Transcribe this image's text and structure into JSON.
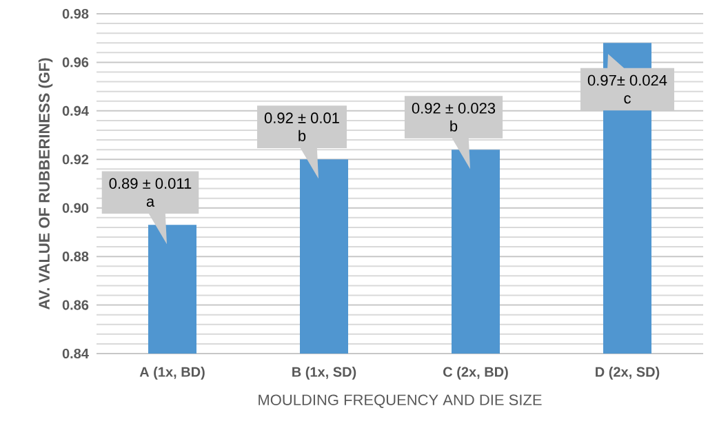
{
  "chart_data": {
    "type": "bar",
    "xlabel": "MOULDING FREQUENCY AND DIE SIZE",
    "ylabel": "AV. VALUE OF RUBBERINESS (GF)",
    "categories": [
      "A (1x, BD)",
      "B (1x, SD)",
      "C (2x, BD)",
      "D (2x, SD)"
    ],
    "values": [
      0.893,
      0.92,
      0.924,
      0.968
    ],
    "color": "#5096d0",
    "ylim": [
      0.84,
      0.98
    ],
    "yticks": [
      {
        "value": 0.84,
        "label": "0.84"
      },
      {
        "value": 0.86,
        "label": "0.86"
      },
      {
        "value": 0.88,
        "label": "0.88"
      },
      {
        "value": 0.9,
        "label": "0.90"
      },
      {
        "value": 0.92,
        "label": "0.92"
      },
      {
        "value": 0.94,
        "label": "0.94"
      },
      {
        "value": 0.96,
        "label": "0.96"
      },
      {
        "value": 0.98,
        "label": "0.98"
      }
    ],
    "grid": true,
    "annotations": [
      {
        "text": "0.89 ± 0.011",
        "x": "A (1x, BD)",
        "y": 0.893
      },
      "a",
      {
        "text": "0.92 ± 0.01",
        "x": "B (1x, SD)",
        "y": 0.92
      },
      "b",
      {
        "text": "0.92 ± 0.023",
        "x": "C (2x, BD)",
        "y": 0.924
      },
      "b",
      {
        "text": "0.97± 0.024",
        "x": "D (2x, SD)",
        "y": 0.968
      },
      "c"
    ]
  }
}
